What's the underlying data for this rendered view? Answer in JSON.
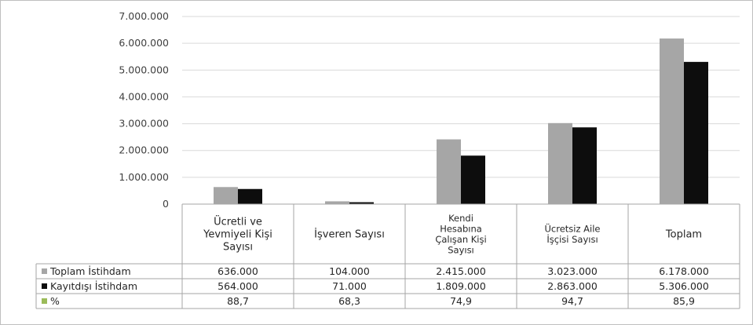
{
  "chart_data": {
    "type": "bar",
    "categories": [
      [
        "Ücretli ve",
        "Yevmiyeli Kişi",
        "Sayısı"
      ],
      [
        "İşveren Sayısı"
      ],
      [
        "Kendi",
        "Hesabına",
        "Çalışan Kişi",
        "Sayısı"
      ],
      [
        "Ücretsiz Aile",
        "İşçisi Sayısı"
      ],
      [
        "Toplam"
      ]
    ],
    "series": [
      {
        "name": "Toplam İstihdam",
        "values": [
          636000,
          104000,
          2415000,
          3023000,
          6178000
        ],
        "color": "#a6a6a6"
      },
      {
        "name": "Kayıtdışı İstihdam",
        "values": [
          564000,
          71000,
          1809000,
          2863000,
          5306000
        ],
        "color": "#0d0d0d"
      }
    ],
    "table_rows": [
      {
        "legend": "Toplam İstihdam",
        "color": "#a6a6a6",
        "cells": [
          "636.000",
          "104.000",
          "2.415.000",
          "3.023.000",
          "6.178.000"
        ]
      },
      {
        "legend": "Kayıtdışı İstihdam",
        "color": "#0d0d0d",
        "cells": [
          "564.000",
          "71.000",
          "1.809.000",
          "2.863.000",
          "5.306.000"
        ]
      },
      {
        "legend": "%",
        "color": "#9bbb59",
        "cells": [
          "88,7",
          "68,3",
          "74,9",
          "94,7",
          "85,9"
        ]
      }
    ],
    "y_ticks": [
      "0",
      "1.000.000",
      "2.000.000",
      "3.000.000",
      "4.000.000",
      "5.000.000",
      "6.000.000",
      "7.000.000"
    ],
    "ylim": [
      0,
      7000000
    ],
    "grid": true,
    "legend": "data-table"
  }
}
